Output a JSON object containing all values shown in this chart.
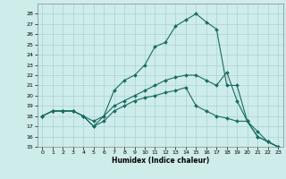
{
  "xlabel": "Humidex (Indice chaleur)",
  "bg_color": "#cdecea",
  "grid_color": "#a8d5d1",
  "line_color": "#1a6b60",
  "xlim": [
    -0.5,
    23.5
  ],
  "ylim": [
    15,
    29
  ],
  "xticks": [
    0,
    1,
    2,
    3,
    4,
    5,
    6,
    7,
    8,
    9,
    10,
    11,
    12,
    13,
    14,
    15,
    16,
    17,
    18,
    19,
    20,
    21,
    22,
    23
  ],
  "yticks": [
    15,
    16,
    17,
    18,
    19,
    20,
    21,
    22,
    23,
    24,
    25,
    26,
    27,
    28
  ],
  "series": [
    {
      "x": [
        0,
        1,
        2,
        3,
        4,
        5,
        6,
        7,
        8,
        9,
        10,
        11,
        12,
        13,
        14,
        15,
        16,
        17,
        18,
        19,
        20,
        21,
        22,
        23
      ],
      "y": [
        18,
        18.5,
        18.5,
        18.5,
        18,
        17.0,
        18.0,
        20.5,
        21.5,
        22.0,
        23.0,
        24.8,
        25.2,
        26.8,
        27.4,
        28.0,
        27.2,
        26.5,
        21.0,
        21.0,
        17.5,
        16.0,
        15.5,
        15.0
      ]
    },
    {
      "x": [
        0,
        1,
        2,
        3,
        4,
        5,
        6,
        7,
        8,
        9,
        10,
        11,
        12,
        13,
        14,
        15,
        16,
        17,
        18,
        19,
        20,
        21,
        22,
        23
      ],
      "y": [
        18,
        18.5,
        18.5,
        18.5,
        18,
        17.5,
        18.0,
        19.0,
        19.5,
        20.0,
        20.5,
        21.0,
        21.5,
        21.8,
        22.0,
        22.0,
        21.5,
        21.0,
        22.3,
        19.5,
        17.5,
        16.5,
        15.5,
        15.0
      ]
    },
    {
      "x": [
        0,
        1,
        2,
        3,
        4,
        5,
        6,
        7,
        8,
        9,
        10,
        11,
        12,
        13,
        14,
        15,
        16,
        17,
        18,
        19,
        20,
        21,
        22,
        23
      ],
      "y": [
        18,
        18.5,
        18.5,
        18.5,
        18,
        17.0,
        17.5,
        18.5,
        19.0,
        19.5,
        19.8,
        20.0,
        20.3,
        20.5,
        20.8,
        19.0,
        18.5,
        18.0,
        17.8,
        17.5,
        17.5,
        16.0,
        15.5,
        15.0
      ]
    }
  ]
}
